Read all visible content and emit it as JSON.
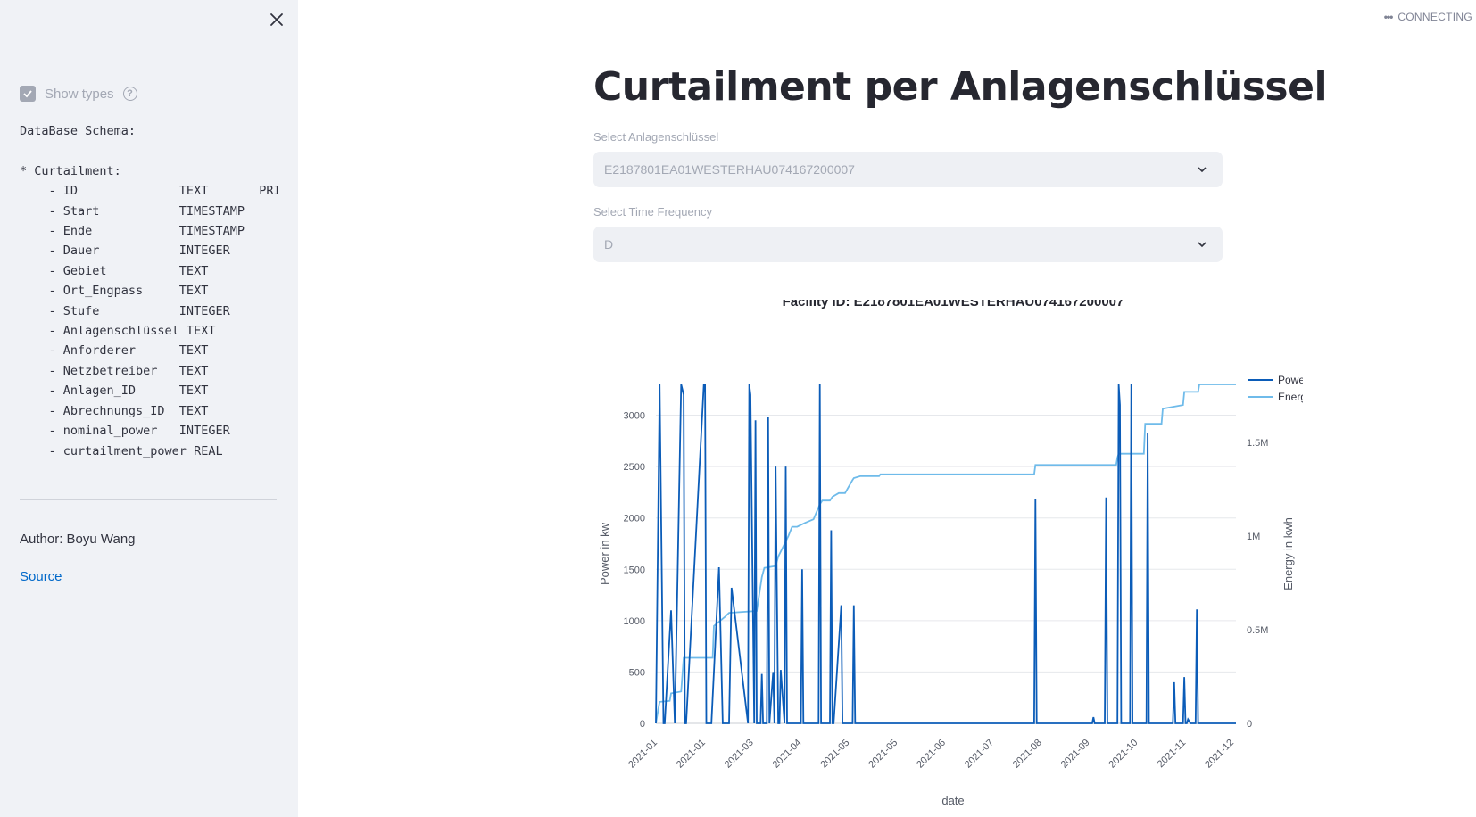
{
  "sidebar": {
    "show_types_label": "Show types",
    "help_icon": "?",
    "schema_text": "DataBase Schema:\n\n* Curtailment:\n    - ID              TEXT       PRIMARY KEY\n    - Start           TIMESTAMP\n    - Ende            TIMESTAMP\n    - Dauer           INTEGER\n    - Gebiet          TEXT\n    - Ort_Engpass     TEXT\n    - Stufe           INTEGER\n    - Anlagenschlüssel TEXT\n    - Anforderer      TEXT\n    - Netzbetreiber   TEXT\n    - Anlagen_ID      TEXT\n    - Abrechnungs_ID  TEXT\n    - nominal_power   INTEGER\n    - curtailment_power REAL",
    "author": "Author: Boyu Wang",
    "source_link": "Source"
  },
  "status": {
    "text": "CONNECTING"
  },
  "main": {
    "title": "Curtailment per Anlagenschlüssel",
    "select1": {
      "label": "Select Anlagenschlüssel",
      "value": "E2187801EA01WESTERHAU074167200007"
    },
    "select2": {
      "label": "Select Time Frequency",
      "value": "D"
    }
  },
  "colors": {
    "power": "#0b5cb8",
    "energy": "#6fbbea",
    "accent_link": "#0068c9"
  },
  "chart_data": {
    "type": "line",
    "title": "Facility ID: E2187801EA01WESTERHAU074167200007",
    "xlabel": "date",
    "ylabel": "Power in kw",
    "y2label": "Energy in kwh",
    "ylim": [
      0,
      3300
    ],
    "y2lim": [
      0,
      1810000
    ],
    "yticks": [
      "0",
      "500",
      "1000",
      "1500",
      "2000",
      "2500",
      "3000"
    ],
    "y2ticks": [
      "0",
      "0.5M",
      "1M",
      "1.5M"
    ],
    "xticks": [
      "2021-01",
      "2021-01",
      "2021-03",
      "2021-04",
      "2021-05",
      "2021-05",
      "2021-06",
      "2021-07",
      "2021-08",
      "2021-09",
      "2021-10",
      "2021-11",
      "2021-12"
    ],
    "legend": "top-right",
    "series": [
      {
        "name": "Power",
        "x": [
          0,
          3,
          6,
          7,
          12,
          15,
          20,
          22,
          23,
          24,
          38,
          39,
          40,
          44,
          50,
          53,
          58,
          60,
          73,
          74,
          75,
          78,
          79,
          80,
          83,
          84,
          85,
          88,
          89,
          90,
          93,
          94,
          95,
          97,
          98,
          99,
          102,
          103,
          104,
          105,
          106,
          107,
          108,
          109,
          115,
          116,
          117,
          118,
          129,
          130,
          131,
          137,
          138,
          139,
          140,
          141,
          147,
          148,
          149,
          150,
          151,
          152,
          153,
          156,
          157,
          158,
          160,
          161,
          162,
          300,
          301,
          302,
          346,
          347,
          348,
          356,
          357,
          358,
          366,
          367,
          368,
          369,
          370,
          376,
          377,
          378,
          387,
          388,
          389,
          390,
          391,
          392,
          410,
          411,
          412,
          414,
          415,
          418,
          419,
          420,
          421,
          422,
          424,
          428,
          429,
          430,
          431,
          432,
          460
        ],
        "y": [
          0,
          3300,
          0,
          0,
          1100,
          0,
          3300,
          3200,
          0,
          0,
          3300,
          3300,
          0,
          0,
          1520,
          0,
          0,
          1320,
          0,
          3300,
          3200,
          0,
          2950,
          0,
          0,
          480,
          0,
          0,
          2980,
          0,
          500,
          0,
          2500,
          0,
          0,
          520,
          0,
          2500,
          0,
          0,
          0,
          0,
          0,
          0,
          0,
          1500,
          0,
          0,
          0,
          3300,
          0,
          0,
          0,
          1880,
          0,
          0,
          1150,
          0,
          0,
          0,
          0,
          0,
          0,
          0,
          1150,
          0,
          0,
          0,
          0,
          0,
          2180,
          0,
          0,
          60,
          0,
          0,
          2200,
          0,
          0,
          3300,
          3100,
          0,
          0,
          0,
          3300,
          0,
          0,
          0,
          0,
          2830,
          0,
          0,
          0,
          400,
          0,
          0,
          0,
          0,
          450,
          0,
          0,
          40,
          0,
          0,
          1110,
          0,
          0,
          0,
          0
        ]
      },
      {
        "name": "Energy",
        "x": [
          0,
          2,
          3,
          11,
          12,
          20,
          22,
          45,
          46,
          55,
          58,
          80,
          84,
          86,
          95,
          97,
          105,
          108,
          112,
          118,
          125,
          130,
          132,
          138,
          140,
          145,
          150,
          156,
          157,
          162,
          173,
          177,
          178,
          199,
          212,
          300,
          301,
          310,
          351,
          355,
          365,
          366,
          367,
          368,
          387,
          388,
          401,
          402,
          418,
          419,
          430,
          431,
          448,
          460
        ],
        "y": [
          0,
          80000,
          115000,
          120000,
          160000,
          170000,
          350000,
          350000,
          520000,
          570000,
          590000,
          600000,
          780000,
          830000,
          840000,
          890000,
          1000000,
          1050000,
          1050000,
          1070000,
          1090000,
          1170000,
          1190000,
          1190000,
          1210000,
          1230000,
          1230000,
          1300000,
          1310000,
          1320000,
          1320000,
          1320000,
          1330000,
          1330000,
          1330000,
          1330000,
          1380000,
          1380000,
          1380000,
          1380000,
          1380000,
          1420000,
          1440000,
          1440000,
          1440000,
          1600000,
          1600000,
          1680000,
          1700000,
          1770000,
          1770000,
          1810000,
          1810000,
          1810000
        ]
      }
    ]
  }
}
